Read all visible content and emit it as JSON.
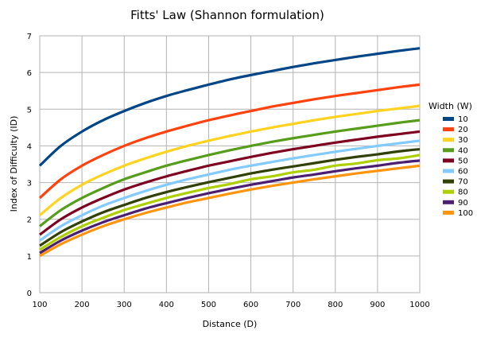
{
  "chart_data": {
    "type": "line",
    "title": "Fitts' Law (Shannon formulation)",
    "xlabel": "Distance (D)",
    "ylabel": "Index of Difficulty (ID)",
    "xlim": [
      100,
      1000
    ],
    "ylim": [
      0,
      7
    ],
    "x_ticks": [
      100,
      200,
      300,
      400,
      500,
      600,
      700,
      800,
      900,
      1000
    ],
    "y_ticks": [
      0,
      1,
      2,
      3,
      4,
      5,
      6,
      7
    ],
    "grid": true,
    "legend_title": "Width (W)",
    "legend_position": "right",
    "x": [
      100,
      150,
      200,
      250,
      300,
      350,
      400,
      450,
      500,
      550,
      600,
      650,
      700,
      750,
      800,
      850,
      900,
      950,
      1000
    ],
    "series": [
      {
        "name": "10",
        "color": "#004586",
        "values": [
          3.46,
          4.0,
          4.39,
          4.7,
          4.95,
          5.17,
          5.36,
          5.52,
          5.67,
          5.81,
          5.93,
          6.04,
          6.15,
          6.25,
          6.34,
          6.43,
          6.51,
          6.59,
          6.66
        ]
      },
      {
        "name": "20",
        "color": "#ff420e",
        "values": [
          2.58,
          3.09,
          3.46,
          3.75,
          4.0,
          4.21,
          4.39,
          4.55,
          4.7,
          4.83,
          4.95,
          5.07,
          5.17,
          5.27,
          5.36,
          5.44,
          5.52,
          5.6,
          5.67
        ]
      },
      {
        "name": "30",
        "color": "#ffd320",
        "values": [
          2.11,
          2.58,
          2.94,
          3.22,
          3.46,
          3.66,
          3.84,
          4.0,
          4.14,
          4.27,
          4.39,
          4.5,
          4.6,
          4.7,
          4.79,
          4.87,
          4.95,
          5.02,
          5.09
        ]
      },
      {
        "name": "40",
        "color": "#579d1c",
        "values": [
          1.81,
          2.25,
          2.58,
          2.85,
          3.09,
          3.28,
          3.46,
          3.61,
          3.75,
          3.88,
          4.0,
          4.11,
          4.21,
          4.3,
          4.39,
          4.47,
          4.55,
          4.63,
          4.7
        ]
      },
      {
        "name": "50",
        "color": "#7e0021",
        "values": [
          1.58,
          2.0,
          2.32,
          2.58,
          2.81,
          3.0,
          3.17,
          3.32,
          3.46,
          3.58,
          3.7,
          3.81,
          3.91,
          4.0,
          4.09,
          4.17,
          4.25,
          4.32,
          4.39
        ]
      },
      {
        "name": "60",
        "color": "#83caff",
        "values": [
          1.42,
          1.81,
          2.11,
          2.37,
          2.58,
          2.77,
          2.94,
          3.09,
          3.22,
          3.35,
          3.46,
          3.56,
          3.66,
          3.75,
          3.84,
          3.92,
          4.0,
          4.07,
          4.14
        ]
      },
      {
        "name": "70",
        "color": "#314004",
        "values": [
          1.28,
          1.65,
          1.94,
          2.19,
          2.39,
          2.58,
          2.74,
          2.88,
          3.01,
          3.13,
          3.25,
          3.35,
          3.44,
          3.53,
          3.62,
          3.7,
          3.77,
          3.85,
          3.91
        ]
      },
      {
        "name": "80",
        "color": "#aecf00",
        "values": [
          1.17,
          1.52,
          1.81,
          2.04,
          2.25,
          2.42,
          2.58,
          2.72,
          2.85,
          2.96,
          3.09,
          3.17,
          3.28,
          3.35,
          3.46,
          3.52,
          3.61,
          3.66,
          3.75
        ]
      },
      {
        "name": "90",
        "color": "#4b1f6f",
        "values": [
          1.08,
          1.42,
          1.69,
          1.92,
          2.11,
          2.29,
          2.44,
          2.58,
          2.71,
          2.83,
          2.94,
          3.04,
          3.14,
          3.22,
          3.31,
          3.39,
          3.46,
          3.54,
          3.6
        ]
      },
      {
        "name": "100",
        "color": "#ff950e",
        "values": [
          1.0,
          1.32,
          1.58,
          1.81,
          2.0,
          2.17,
          2.32,
          2.46,
          2.58,
          2.7,
          2.81,
          2.91,
          3.0,
          3.09,
          3.17,
          3.25,
          3.32,
          3.39,
          3.46
        ]
      }
    ]
  }
}
